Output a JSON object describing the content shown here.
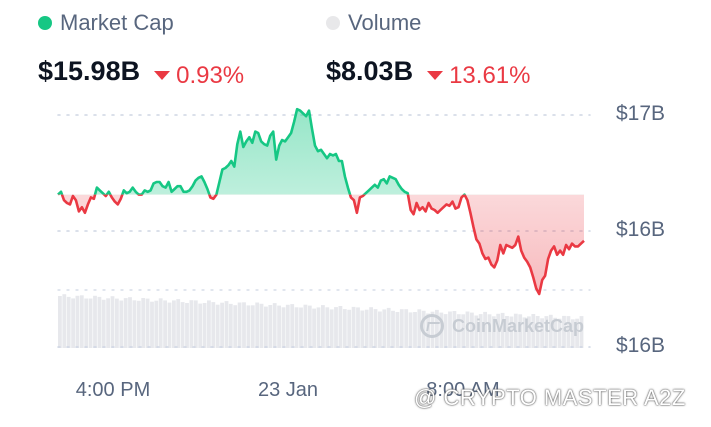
{
  "legend": {
    "market_cap": {
      "label": "Market Cap",
      "color": "#16c784"
    },
    "volume": {
      "label": "Volume",
      "color": "#e8e8ea"
    }
  },
  "stats": {
    "market_cap": {
      "value": "$15.98B",
      "change": "0.93%",
      "direction": "down"
    },
    "volume": {
      "value": "$8.03B",
      "change": "13.61%",
      "direction": "down"
    }
  },
  "watermark": {
    "brand": "CoinMarketCap",
    "credit": "@ CRYPTO MASTER A2Z"
  },
  "colors": {
    "up": "#16c784",
    "down": "#ea3943",
    "up_fill": "#16c784",
    "down_fill": "#ea3943",
    "grid": "#cfd6e4",
    "axis_text": "#58667e",
    "volume_bar": "#e7e8ec"
  },
  "chart_data": {
    "type": "line",
    "title": "",
    "xlabel": "",
    "ylabel": "",
    "x_ticks": [
      "4:00 PM",
      "23 Jan",
      "8:00 AM"
    ],
    "y_ticks": [
      "$17B",
      "$16B",
      "$16B"
    ],
    "ylim": [
      15.5,
      17.1
    ],
    "reference_value": 16.31,
    "grid": true,
    "series": [
      {
        "values": [
          16.31,
          16.33,
          16.27,
          16.25,
          16.24,
          16.3,
          16.27,
          16.19,
          16.22,
          16.18,
          16.24,
          16.29,
          16.28,
          16.36,
          16.34,
          16.32,
          16.3,
          16.33,
          16.29,
          16.26,
          16.24,
          16.28,
          16.34,
          16.32,
          16.33,
          16.36,
          16.33,
          16.31,
          16.31,
          16.34,
          16.33,
          16.34,
          16.39,
          16.4,
          16.4,
          16.37,
          16.36,
          16.4,
          16.33,
          16.35,
          16.37,
          16.37,
          16.33,
          16.33,
          16.34,
          16.37,
          16.41,
          16.43,
          16.44,
          16.4,
          16.35,
          16.29,
          16.28,
          16.31,
          16.4,
          16.49,
          16.5,
          16.52,
          16.55,
          16.51,
          16.67,
          16.76,
          16.65,
          16.69,
          16.72,
          16.68,
          16.76,
          16.75,
          16.69,
          16.67,
          16.66,
          16.73,
          16.76,
          16.56,
          16.66,
          16.7,
          16.69,
          16.72,
          16.75,
          16.83,
          16.92,
          16.91,
          16.89,
          16.87,
          16.91,
          16.78,
          16.66,
          16.62,
          16.63,
          16.6,
          16.57,
          16.6,
          16.59,
          16.6,
          16.55,
          16.55,
          16.44,
          16.36,
          16.29,
          16.27,
          16.18,
          16.29,
          16.3,
          16.32,
          16.34,
          16.36,
          16.38,
          16.36,
          16.41,
          16.42,
          16.39,
          16.44,
          16.43,
          16.42,
          16.38,
          16.35,
          16.33,
          16.32,
          16.2,
          16.17,
          16.25,
          16.2,
          16.22,
          16.19,
          16.25,
          16.21,
          16.2,
          16.18,
          16.2,
          16.22,
          16.24,
          16.23,
          16.26,
          16.21,
          16.22,
          16.29,
          16.31,
          16.27,
          16.18,
          16.08,
          15.99,
          15.96,
          15.89,
          15.85,
          15.86,
          15.81,
          15.79,
          15.84,
          15.95,
          15.89,
          15.95,
          15.94,
          15.93,
          15.95,
          16.01,
          15.91,
          15.86,
          15.83,
          15.79,
          15.72,
          15.64,
          15.6,
          15.7,
          15.73,
          15.85,
          15.91,
          15.94,
          15.88,
          15.91,
          15.88,
          15.95,
          15.92,
          15.96,
          15.94,
          15.94,
          15.96,
          15.98
        ]
      }
    ]
  }
}
